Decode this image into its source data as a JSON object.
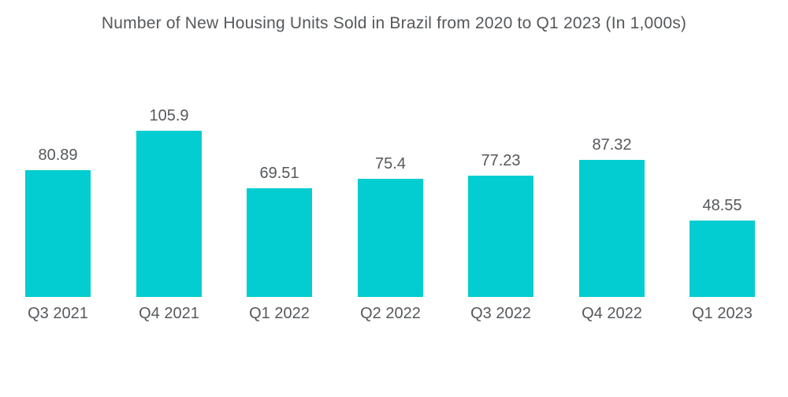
{
  "title": "Number of New Housing Units Sold in Brazil from 2020 to Q1 2023 (In 1,000s)",
  "colors": {
    "bar": "#03cdd1",
    "text": "#55585b",
    "background": "#ffffff"
  },
  "chart_data": {
    "type": "bar",
    "title": "Number of New Housing Units Sold in Brazil from 2020 to Q1 2023 (In 1,000s)",
    "categories": [
      "Q3 2021",
      "Q4 2021",
      "Q1 2022",
      "Q2 2022",
      "Q3 2022",
      "Q4 2022",
      "Q1 2023"
    ],
    "values": [
      80.89,
      105.9,
      69.51,
      75.4,
      77.23,
      87.32,
      48.55
    ],
    "value_labels": [
      "80.89",
      "105.9",
      "69.51",
      "75.4",
      "77.23",
      "87.32",
      "48.55"
    ],
    "xlabel": "",
    "ylabel": "",
    "ylim": [
      0,
      110
    ],
    "grid": false,
    "legend": false,
    "axes_visible": false
  }
}
